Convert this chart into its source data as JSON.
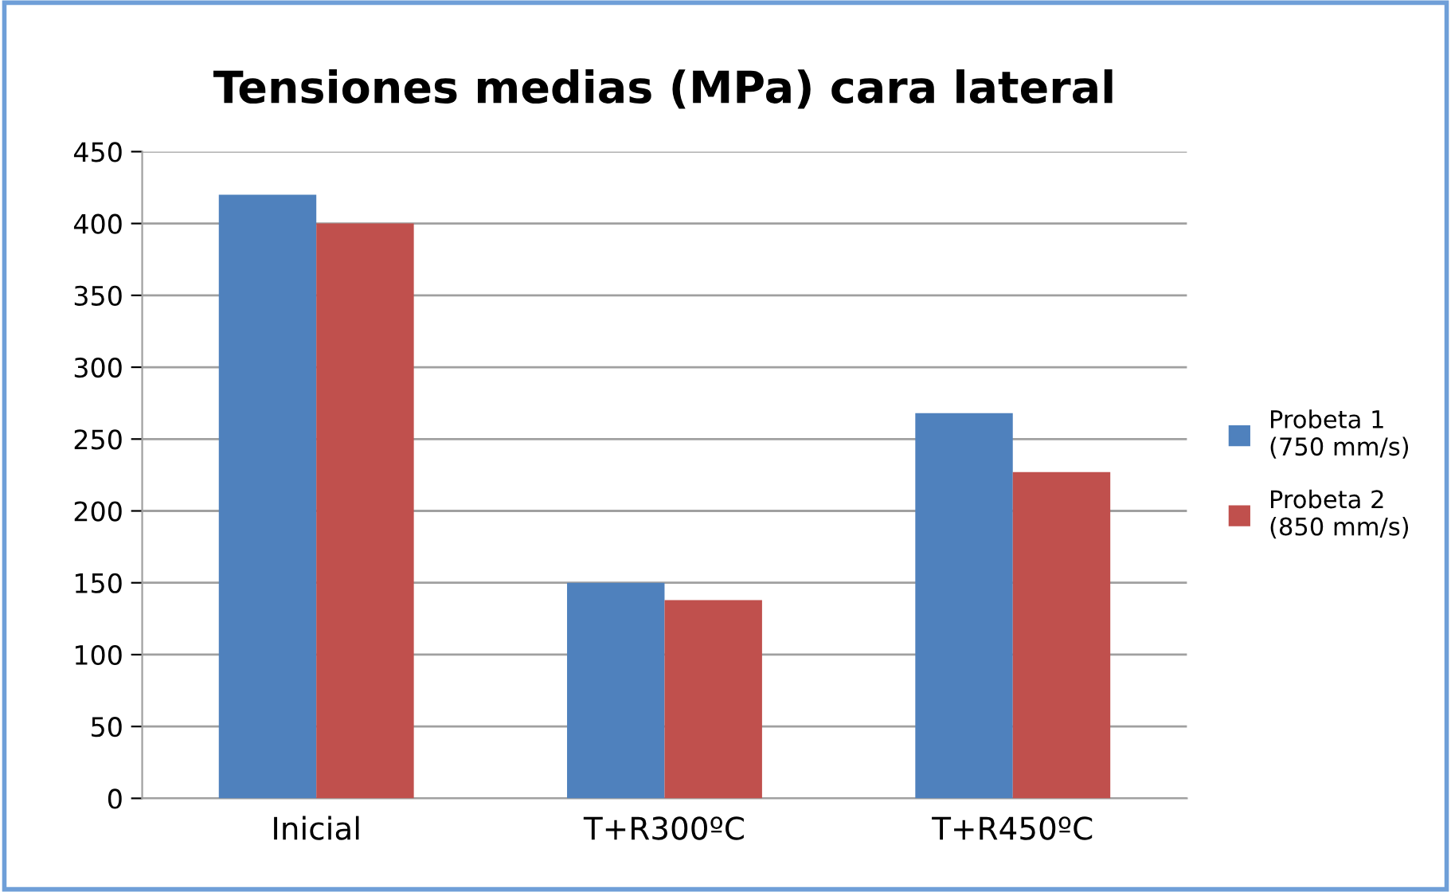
{
  "chart_data": {
    "type": "bar",
    "title": "Tensiones medias (MPa) cara lateral",
    "categories": [
      "Inicial",
      "T+R300ºC",
      "T+R450ºC"
    ],
    "series": [
      {
        "name": "Probeta 1\n(750 mm/s)",
        "color": "#4f81bd",
        "values": [
          420,
          150,
          268
        ]
      },
      {
        "name": "Probeta 2\n(850 mm/s)",
        "color": "#c0504d",
        "values": [
          400,
          138,
          227
        ]
      }
    ],
    "ylim": [
      0,
      450
    ],
    "yticks": [
      0,
      50,
      100,
      150,
      200,
      250,
      300,
      350,
      400,
      450
    ],
    "grid": "y",
    "legend": "right"
  }
}
